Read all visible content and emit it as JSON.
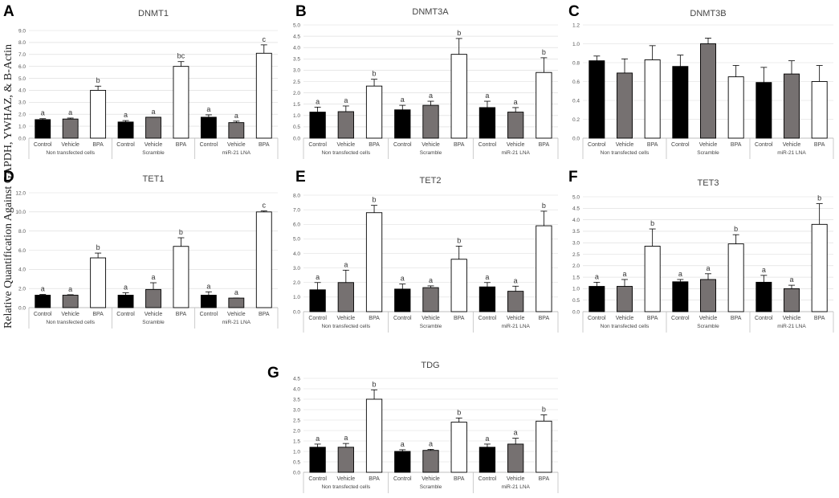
{
  "figure": {
    "y_axis_label": "Relative Quantification Against GAPDH, YWHAZ, & B-Actin"
  },
  "colors": {
    "Control": "#000000",
    "Vehicle": "#767171",
    "BPA": "#ffffff",
    "axis": "#bfbfbf",
    "grid": "#d9d9d9"
  },
  "chart_data": [
    {
      "panel": "A",
      "title": "DNMT1",
      "type": "bar",
      "groups": [
        "Non transfected cells",
        "Scramble",
        "miR-21 LNA"
      ],
      "categories": [
        "Control",
        "Vehicle",
        "BPA"
      ],
      "ylim": [
        0,
        9
      ],
      "yticks": [
        "0.0",
        "1.0",
        "2.0",
        "3.0",
        "4.0",
        "5.0",
        "6.0",
        "7.0",
        "8.0",
        "9.0"
      ],
      "values": [
        [
          1.55,
          1.6,
          4.0
        ],
        [
          1.35,
          1.75,
          6.0
        ],
        [
          1.75,
          1.3,
          7.1
        ]
      ],
      "errors": [
        [
          0.08,
          0.08,
          0.35
        ],
        [
          0.12,
          0.0,
          0.4
        ],
        [
          0.2,
          0.12,
          0.7
        ]
      ],
      "labels": [
        [
          "a",
          "a",
          "b"
        ],
        [
          "a",
          "a",
          "bc"
        ],
        [
          "a",
          "a",
          "c"
        ]
      ]
    },
    {
      "panel": "B",
      "title": "DNMT3A",
      "type": "bar",
      "groups": [
        "Non transfected cells",
        "Scramble",
        "miR-21 LNA"
      ],
      "categories": [
        "Control",
        "Vehicle",
        "BPA"
      ],
      "ylim": [
        0,
        5
      ],
      "yticks": [
        "0.0",
        "0.5",
        "1.0",
        "1.5",
        "2.0",
        "2.5",
        "3.0",
        "3.5",
        "4.0",
        "4.5",
        "5.0"
      ],
      "values": [
        [
          1.15,
          1.17,
          2.3
        ],
        [
          1.25,
          1.45,
          3.7
        ],
        [
          1.35,
          1.15,
          2.9
        ]
      ],
      "errors": [
        [
          0.22,
          0.25,
          0.3
        ],
        [
          0.2,
          0.18,
          0.7
        ],
        [
          0.28,
          0.2,
          0.65
        ]
      ],
      "labels": [
        [
          "a",
          "a",
          "b"
        ],
        [
          "a",
          "a",
          "b"
        ],
        [
          "a",
          "a",
          "b"
        ]
      ]
    },
    {
      "panel": "C",
      "title": "DNMT3B",
      "type": "bar",
      "groups": [
        "Non transfected cells",
        "Scramble",
        "miR-21 LNA"
      ],
      "categories": [
        "Control",
        "Vehicle",
        "BPA"
      ],
      "ylim": [
        0,
        1.2
      ],
      "yticks": [
        "0.0",
        "0.2",
        "0.4",
        "0.6",
        "0.8",
        "1.0",
        "1.2"
      ],
      "values": [
        [
          0.82,
          0.69,
          0.83
        ],
        [
          0.76,
          1.0,
          0.65
        ],
        [
          0.59,
          0.68,
          0.6
        ]
      ],
      "errors": [
        [
          0.05,
          0.15,
          0.15
        ],
        [
          0.12,
          0.06,
          0.12
        ],
        [
          0.16,
          0.14,
          0.17
        ]
      ],
      "labels": [
        [
          "",
          "",
          ""
        ],
        [
          "",
          "",
          ""
        ],
        [
          "",
          "",
          ""
        ]
      ]
    },
    {
      "panel": "D",
      "title": "TET1",
      "type": "bar",
      "groups": [
        "Non transfected cells",
        "Scramble",
        "miR-21 LNA"
      ],
      "categories": [
        "Control",
        "Vehicle",
        "BPA"
      ],
      "ylim": [
        0,
        12
      ],
      "yticks": [
        "0.0",
        "2.0",
        "4.0",
        "6.0",
        "8.0",
        "10.0",
        "12.0"
      ],
      "values": [
        [
          1.3,
          1.3,
          5.2
        ],
        [
          1.3,
          1.9,
          6.4
        ],
        [
          1.3,
          1.0,
          10.0
        ]
      ],
      "errors": [
        [
          0.08,
          0.05,
          0.5
        ],
        [
          0.25,
          0.7,
          0.9
        ],
        [
          0.35,
          0.0,
          0.1
        ]
      ],
      "labels": [
        [
          "a",
          "a",
          "b"
        ],
        [
          "a",
          "a",
          "b"
        ],
        [
          "a",
          "a",
          "c"
        ]
      ]
    },
    {
      "panel": "E",
      "title": "TET2",
      "type": "bar",
      "groups": [
        "Non transfected cells",
        "Scramble",
        "miR-21 LNA"
      ],
      "categories": [
        "Control",
        "Vehicle",
        "BPA"
      ],
      "ylim": [
        0,
        8
      ],
      "yticks": [
        "0.0",
        "1.0",
        "2.0",
        "3.0",
        "4.0",
        "5.0",
        "6.0",
        "7.0",
        "8.0"
      ],
      "values": [
        [
          1.5,
          2.0,
          6.8
        ],
        [
          1.55,
          1.65,
          3.6
        ],
        [
          1.7,
          1.4,
          5.9
        ]
      ],
      "errors": [
        [
          0.5,
          0.85,
          0.5
        ],
        [
          0.35,
          0.12,
          0.9
        ],
        [
          0.3,
          0.35,
          1.0
        ]
      ],
      "labels": [
        [
          "a",
          "a",
          "b"
        ],
        [
          "a",
          "a",
          "b"
        ],
        [
          "a",
          "a",
          "b"
        ]
      ]
    },
    {
      "panel": "F",
      "title": "TET3",
      "type": "bar",
      "groups": [
        "Non transfected cells",
        "Scramble",
        "miR-21 LNA"
      ],
      "categories": [
        "Control",
        "Vehicle",
        "BPA"
      ],
      "ylim": [
        0,
        5
      ],
      "yticks": [
        "0.0",
        "0.5",
        "1.0",
        "1.5",
        "2.0",
        "2.5",
        "3.0",
        "3.5",
        "4.0",
        "4.5",
        "5.0"
      ],
      "values": [
        [
          1.1,
          1.1,
          2.85
        ],
        [
          1.3,
          1.4,
          2.95
        ],
        [
          1.28,
          1.0,
          3.8
        ]
      ],
      "errors": [
        [
          0.18,
          0.3,
          0.75
        ],
        [
          0.1,
          0.25,
          0.4
        ],
        [
          0.3,
          0.15,
          0.9
        ]
      ],
      "labels": [
        [
          "a",
          "a",
          "b"
        ],
        [
          "a",
          "a",
          "b"
        ],
        [
          "a",
          "a",
          "b"
        ]
      ]
    },
    {
      "panel": "G",
      "title": "TDG",
      "type": "bar",
      "groups": [
        "Non transfected cells",
        "Scramble",
        "miR-21 LNA"
      ],
      "categories": [
        "Control",
        "Vehicle",
        "BPA"
      ],
      "ylim": [
        0,
        4.5
      ],
      "yticks": [
        "0.0",
        "0.5",
        "1.0",
        "1.5",
        "2.0",
        "2.5",
        "3.0",
        "3.5",
        "4.0",
        "4.5"
      ],
      "values": [
        [
          1.2,
          1.2,
          3.5
        ],
        [
          1.0,
          1.05,
          2.4
        ],
        [
          1.2,
          1.35,
          2.45
        ]
      ],
      "errors": [
        [
          0.15,
          0.18,
          0.45
        ],
        [
          0.08,
          0.05,
          0.2
        ],
        [
          0.15,
          0.28,
          0.3
        ]
      ],
      "labels": [
        [
          "a",
          "a",
          "b"
        ],
        [
          "a",
          "a",
          "b"
        ],
        [
          "a",
          "a",
          "b"
        ]
      ]
    }
  ]
}
